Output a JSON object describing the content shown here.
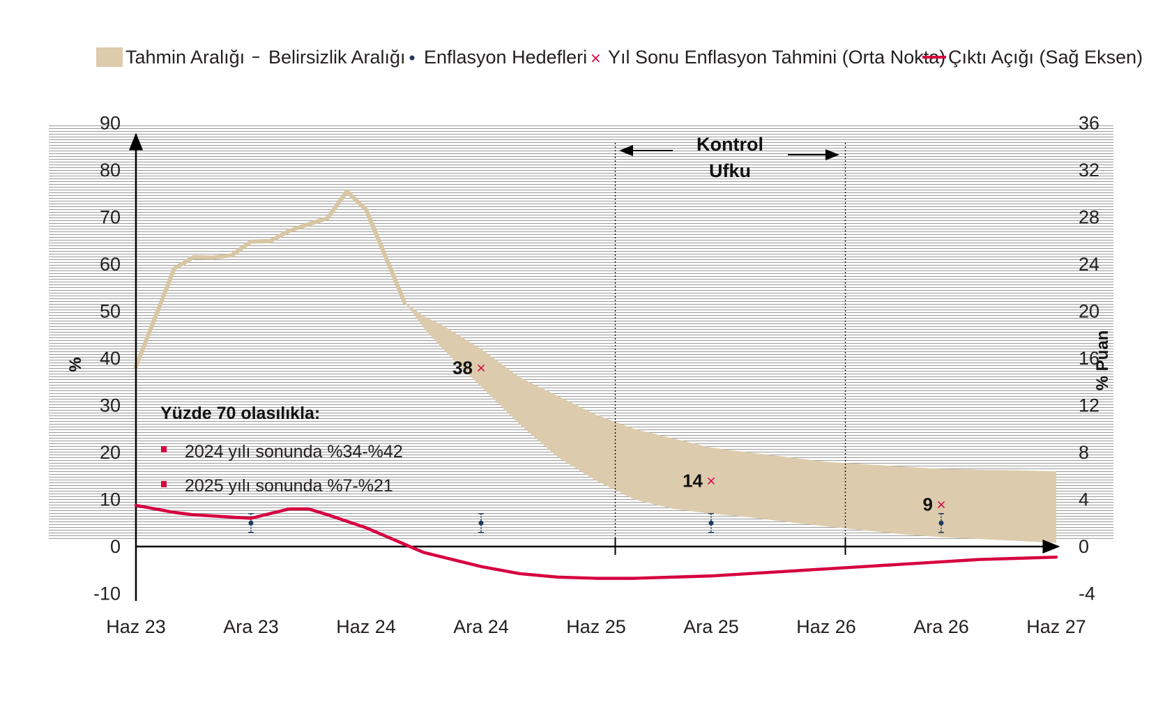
{
  "legend": {
    "forecast_band": "Tahmin Aralığı",
    "uncertainty": "Belirsizlik Aralığı",
    "targets": "Enflasyon Hedefleri",
    "year_end": "Yıl Sonu Enflasyon Tahmini (Orta Nokta)",
    "output_gap": "Çıktı Açığı (Sağ Eksen)"
  },
  "control_horizon": {
    "line1": "Kontrol",
    "line2": "Ufku"
  },
  "note": {
    "title": "Yüzde 70 olasılıkla:",
    "items": [
      "2024 yılı sonunda %34-%42",
      "2025 yılı sonunda %7-%21"
    ]
  },
  "colors": {
    "band": "#dccbad",
    "history": "#d8c6a4",
    "output_gap": "#d6003f",
    "marker": "#d6003f",
    "target": "#1e3a5f",
    "axis": "#000000"
  },
  "chart_data": {
    "type": "line",
    "title": "",
    "xlabel": "",
    "ylabel": "%",
    "ylabel_right": "% Puan",
    "ylim": [
      -10,
      90
    ],
    "ylim_right": [
      -4,
      36
    ],
    "yticks": [
      90,
      80,
      70,
      60,
      50,
      40,
      30,
      20,
      10,
      0,
      -10
    ],
    "yticks_right": [
      36,
      32,
      28,
      24,
      20,
      16,
      12,
      8,
      4,
      0,
      -4
    ],
    "x_tick_labels": [
      "Haz 23",
      "Ara 23",
      "Haz 24",
      "Ara 24",
      "Haz 25",
      "Ara 25",
      "Haz 26",
      "Ara 26",
      "Haz 27"
    ],
    "x_tick_months": [
      0,
      6,
      12,
      18,
      24,
      30,
      36,
      42,
      48
    ],
    "control_horizon_months": [
      25,
      37
    ],
    "inflation_history": {
      "name": "",
      "x": [
        0,
        2,
        3,
        4,
        5,
        6,
        7,
        8,
        9,
        10,
        11,
        12,
        13,
        14
      ],
      "y": [
        38.2,
        59.1,
        61.5,
        61.4,
        61.9,
        64.8,
        64.9,
        67.1,
        68.5,
        69.8,
        75.5,
        71.6,
        61.8,
        52.0
      ]
    },
    "forecast_band": {
      "x": [
        14,
        15,
        16,
        18,
        20,
        22,
        24,
        26,
        28,
        30,
        32,
        34,
        36,
        38,
        40,
        42,
        44,
        46,
        48
      ],
      "upper": [
        52.0,
        49,
        47,
        42,
        36,
        32,
        28,
        25,
        23,
        21,
        20,
        19,
        18,
        17.5,
        17,
        16.5,
        16.3,
        16.2,
        16.0
      ],
      "lower": [
        52.0,
        46.5,
        42,
        34,
        26,
        19,
        14,
        10,
        8,
        7,
        6.2,
        5.2,
        4.3,
        3.4,
        2.6,
        2.0,
        1.6,
        1.2,
        0.8
      ]
    },
    "year_end_midpoints": {
      "x": [
        18,
        30,
        42
      ],
      "y": [
        38,
        14,
        9
      ],
      "labels": [
        "38",
        "14",
        "9"
      ]
    },
    "inflation_targets": {
      "x": [
        6,
        18,
        30,
        42
      ],
      "y": [
        5,
        5,
        5,
        5
      ],
      "low": [
        3,
        3,
        3,
        3
      ],
      "high": [
        7,
        7,
        7,
        7
      ]
    },
    "output_gap": {
      "name": "Çıktı Açığı (Sağ Eksen)",
      "axis": "right",
      "x": [
        0,
        2,
        3,
        4,
        6,
        8,
        9,
        10,
        12,
        13,
        14,
        15,
        16,
        18,
        20,
        22,
        24,
        26,
        28,
        30,
        32,
        34,
        36,
        38,
        40,
        42,
        44,
        46,
        48
      ],
      "y": [
        3.5,
        2.9,
        2.7,
        2.6,
        2.4,
        3.2,
        3.2,
        2.7,
        1.6,
        0.9,
        0.2,
        -0.5,
        -0.9,
        -1.7,
        -2.3,
        -2.6,
        -2.7,
        -2.7,
        -2.6,
        -2.5,
        -2.3,
        -2.1,
        -1.9,
        -1.7,
        -1.5,
        -1.3,
        -1.1,
        -1.0,
        -0.9
      ]
    },
    "grid": true,
    "legend_position": "top"
  }
}
